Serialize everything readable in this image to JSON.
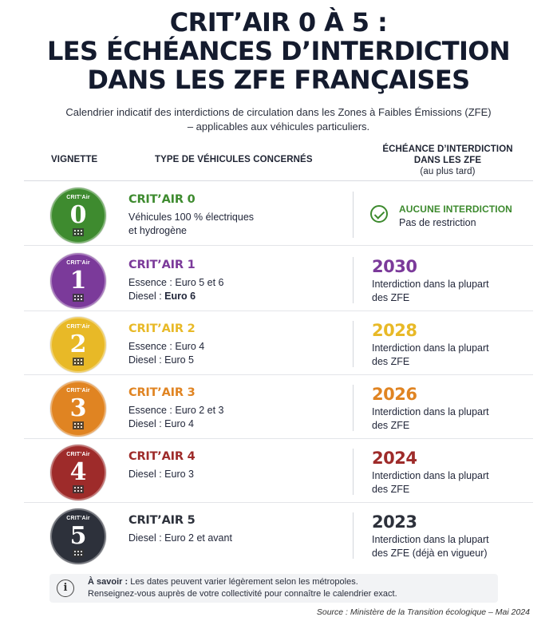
{
  "title_lines": [
    "CRIT’AIR 0 À 5 :",
    "LES ÉCHÉANCES D’INTERDICTION",
    "DANS LES ZFE FRANÇAISES"
  ],
  "subtitle_lines": [
    "Calendrier indicatif des interdictions de circulation dans les Zones à Faibles Émissions (ZFE)",
    "– applicables aux véhicules particuliers."
  ],
  "header": {
    "vignette": "VIGNETTE",
    "type": "TYPE DE VÉHICULES CONCERNÉS",
    "deadline_line1": "ÉCHÉANCE D’INTERDICTION",
    "deadline_line2": "DANS LES ZFE",
    "deadline_note": "(au plus tard)"
  },
  "badge_label": "CRIT’Air",
  "rows": [
    {
      "num": "0",
      "color": "#3e8b2f",
      "name": "CRIT’AIR 0",
      "desc": [
        {
          "pre": "Véhicules 100 % électriques",
          "bold": ""
        },
        {
          "pre": "et hydrogène",
          "bold": ""
        }
      ],
      "no_ban": true,
      "no_ban_label": "AUCUNE INTERDICTION",
      "no_ban_note": "Pas de restriction"
    },
    {
      "num": "1",
      "color": "#7b3a9a",
      "name": "CRIT’AIR 1",
      "desc": [
        {
          "pre": "Essence : Euro 5 et 6",
          "bold": ""
        },
        {
          "pre": "Diesel : ",
          "bold": "Euro 6"
        }
      ],
      "year": "2030",
      "note": [
        "Interdiction dans la plupart",
        "des ZFE"
      ]
    },
    {
      "num": "2",
      "color": "#e8b927",
      "name": "CRIT’AIR 2",
      "desc": [
        {
          "pre": "Essence : Euro 4",
          "bold": ""
        },
        {
          "pre": "Diesel : Euro 5",
          "bold": ""
        }
      ],
      "year": "2028",
      "note": [
        "Interdiction dans la plupart",
        "des ZFE"
      ]
    },
    {
      "num": "3",
      "color": "#e08422",
      "name": "CRIT’AIR 3",
      "desc": [
        {
          "pre": "Essence : Euro 2 et 3",
          "bold": ""
        },
        {
          "pre": "Diesel : Euro 4",
          "bold": ""
        }
      ],
      "year": "2026",
      "note": [
        "Interdiction dans la plupart",
        "des ZFE"
      ]
    },
    {
      "num": "4",
      "color": "#9e2b2a",
      "name": "CRIT’AIR 4",
      "desc": [
        {
          "pre": "Diesel : Euro 3",
          "bold": ""
        }
      ],
      "year": "2024",
      "note": [
        "Interdiction dans la plupart",
        "des ZFE"
      ]
    },
    {
      "num": "5",
      "color": "#2d313b",
      "name": "CRIT’AIR 5",
      "desc": [
        {
          "pre": "Diesel : Euro 2 et avant",
          "bold": ""
        }
      ],
      "year": "2023",
      "note": [
        "Interdiction dans la plupart",
        "des ZFE (déjà en vigueur)"
      ]
    }
  ],
  "note": {
    "bold": "À savoir :",
    "line1": " Les dates peuvent varier légèrement selon les métropoles.",
    "line2": "Renseignez-vous auprès de votre collectivité pour connaître le calendrier exact."
  },
  "source": "Source : Ministère de la Transition écologique – Mai 2024"
}
